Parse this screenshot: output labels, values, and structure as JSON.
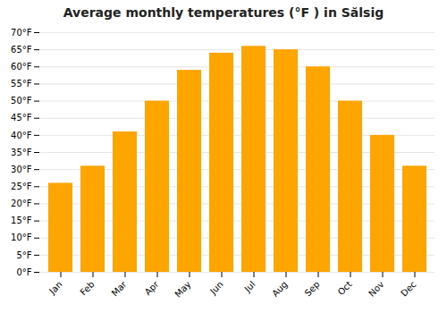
{
  "chart_data": {
    "type": "bar",
    "title": "Average monthly temperatures (°F ) in Sălsig",
    "categories": [
      "Jan",
      "Feb",
      "Mar",
      "Apr",
      "May",
      "Jun",
      "Jul",
      "Aug",
      "Sep",
      "Oct",
      "Nov",
      "Dec"
    ],
    "values": [
      26,
      31,
      41,
      50,
      59,
      64,
      66,
      65,
      60,
      50,
      40,
      31
    ],
    "color": "#FFA500",
    "ylim": [
      0,
      70
    ],
    "yticks": [
      {
        "value": 0,
        "label": "0°F"
      },
      {
        "value": 5,
        "label": "5°F"
      },
      {
        "value": 10,
        "label": "10°F"
      },
      {
        "value": 15,
        "label": "15°F"
      },
      {
        "value": 20,
        "label": "20°F"
      },
      {
        "value": 25,
        "label": "25°F"
      },
      {
        "value": 30,
        "label": "30°F"
      },
      {
        "value": 35,
        "label": "35°F"
      },
      {
        "value": 40,
        "label": "40°F"
      },
      {
        "value": 45,
        "label": "45°F"
      },
      {
        "value": 50,
        "label": "50°F"
      },
      {
        "value": 55,
        "label": "55°F"
      },
      {
        "value": 60,
        "label": "60°F"
      },
      {
        "value": 65,
        "label": "65°F"
      },
      {
        "value": 70,
        "label": "70°F"
      }
    ],
    "grid": true
  }
}
